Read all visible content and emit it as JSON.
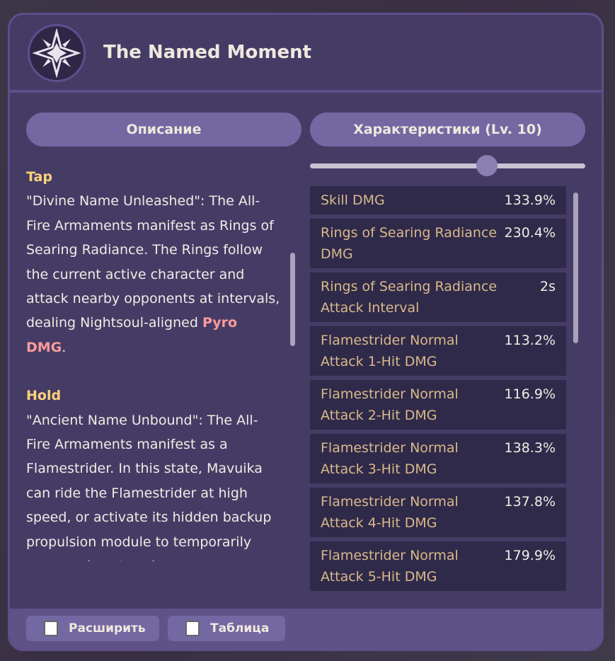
{
  "header": {
    "title": "The Named Moment",
    "icon": "star-emblem-icon"
  },
  "tabs": [
    {
      "label": "Описание"
    },
    {
      "label": "Характеристики (Lv. 10)"
    }
  ],
  "slider": {
    "level": 10,
    "min": 1,
    "max": 15
  },
  "description": {
    "tap_heading": "Tap",
    "tap_text": "\"Divine Name Unleashed\": The All-Fire Armaments manifest as Rings of Searing Radiance. The Rings follow the current active character and attack nearby opponents at intervals, dealing Nightsoul-aligned ",
    "tap_pyro": "Pyro DMG",
    "tap_end": ".",
    "hold_heading": "Hold",
    "hold_text": "\"Ancient Name Unbound\": The All-Fire Armaments manifest as a Flamestrider. In this state, Mavuika can ride the Flamestrider at high speed, or activate its hidden backup propulsion module to temporarily cross various terrain"
  },
  "stats": [
    {
      "label": "Skill DMG",
      "value": "133.9%"
    },
    {
      "label": "Rings of Searing Radiance DMG",
      "value": "230.4%"
    },
    {
      "label": "Rings of Searing Radiance Attack Interval",
      "value": "2s"
    },
    {
      "label": "Flamestrider Normal Attack 1-Hit DMG",
      "value": "113.2%"
    },
    {
      "label": "Flamestrider Normal Attack 2-Hit DMG",
      "value": "116.9%"
    },
    {
      "label": "Flamestrider Normal Attack 3-Hit DMG",
      "value": "138.3%"
    },
    {
      "label": "Flamestrider Normal Attack 4-Hit DMG",
      "value": "137.8%"
    },
    {
      "label": "Flamestrider Normal Attack 5-Hit DMG",
      "value": "179.9%"
    }
  ],
  "footer": {
    "expand_label": "Расширить",
    "table_label": "Таблица"
  },
  "colors": {
    "accent": "#7468a3",
    "heading": "#ffd27a",
    "pyro": "#ff9b9b",
    "stat_label": "#d8b98a"
  }
}
